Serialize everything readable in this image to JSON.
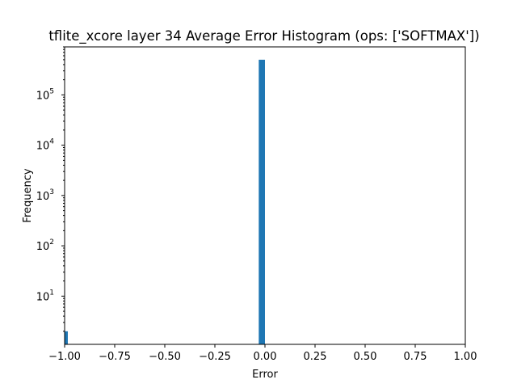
{
  "chart_data": {
    "type": "bar",
    "title": "tflite_xcore layer 34 Average Error Histogram (ops: ['SOFTMAX'])",
    "xlabel": "Error",
    "ylabel": "Frequency",
    "xlim": [
      -1.0,
      1.0
    ],
    "ylim": [
      1.1,
      900000
    ],
    "yscale": "log",
    "grid": false,
    "bar_color": "#1f77b4",
    "x_ticks": [
      {
        "value": -1.0,
        "label": "−1.00"
      },
      {
        "value": -0.75,
        "label": "−0.75"
      },
      {
        "value": -0.5,
        "label": "−0.50"
      },
      {
        "value": -0.25,
        "label": "−0.25"
      },
      {
        "value": 0.0,
        "label": "0.00"
      },
      {
        "value": 0.25,
        "label": "0.25"
      },
      {
        "value": 0.5,
        "label": "0.50"
      },
      {
        "value": 0.75,
        "label": "0.75"
      },
      {
        "value": 1.0,
        "label": "1.00"
      }
    ],
    "y_ticks": [
      {
        "value": 10,
        "base": "10",
        "exp": "1"
      },
      {
        "value": 100,
        "base": "10",
        "exp": "2"
      },
      {
        "value": 1000,
        "base": "10",
        "exp": "3"
      },
      {
        "value": 10000,
        "base": "10",
        "exp": "4"
      },
      {
        "value": 100000,
        "base": "10",
        "exp": "5"
      }
    ],
    "bins": [
      {
        "x0": -1.0,
        "x1": -0.984,
        "value": 2
      },
      {
        "x0": -0.031,
        "x1": -0.0,
        "value": 500000
      }
    ]
  }
}
